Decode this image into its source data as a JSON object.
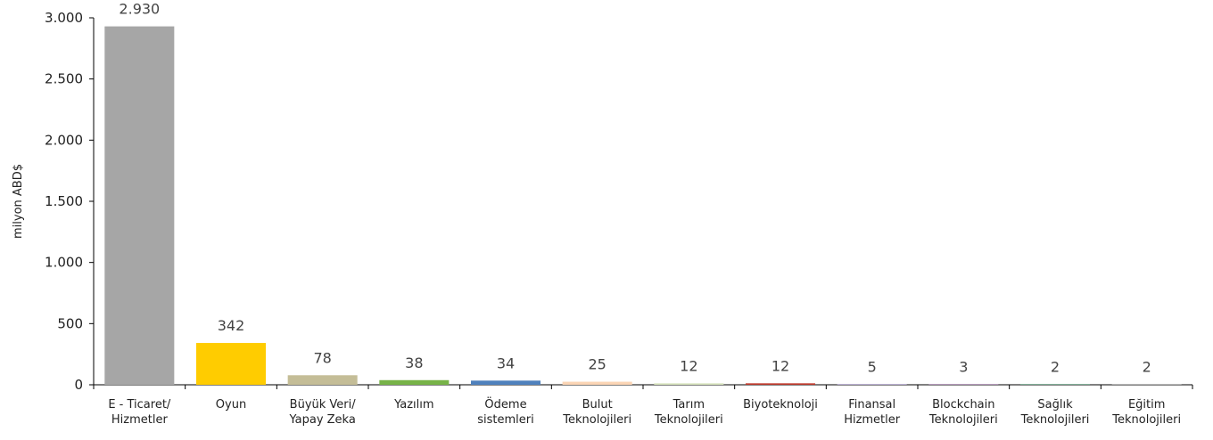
{
  "chart_data": {
    "type": "bar",
    "y_label": "milyon ABD$",
    "categories": [
      [
        "E - Ticaret/",
        "Hizmetler"
      ],
      [
        "Oyun"
      ],
      [
        "Büyük Veri/",
        "Yapay Zeka"
      ],
      [
        "Yazılım"
      ],
      [
        "Ödeme",
        "sistemleri"
      ],
      [
        "Bulut",
        "Teknolojileri"
      ],
      [
        "Tarım",
        "Teknolojileri"
      ],
      [
        "Biyoteknoloji"
      ],
      [
        "Finansal",
        "Hizmetler"
      ],
      [
        "Blockchain",
        "Teknolojileri"
      ],
      [
        "Sağlık",
        "Teknolojileri"
      ],
      [
        "Eğitim",
        "Teknolojileri"
      ]
    ],
    "values": [
      2930,
      342,
      78,
      38,
      34,
      25,
      12,
      12,
      5,
      3,
      2,
      2
    ],
    "value_labels": [
      "2.930",
      "342",
      "78",
      "38",
      "34",
      "25",
      "12",
      "12",
      "5",
      "3",
      "2",
      "2"
    ],
    "colors": [
      "#a6a6a6",
      "#ffcc00",
      "#c4bd97",
      "#77b348",
      "#4f81bd",
      "#fbd5b5",
      "#d7e4bd",
      "#c0392b",
      "#9b8bbd",
      "#7f3f8f",
      "#00a651",
      "#bfbfbf"
    ],
    "ylim": [
      0,
      3000
    ],
    "yticks": [
      0,
      500,
      {
        "value": 1000,
        "label": "1.000"
      },
      {
        "value": 1500,
        "label": "1.500"
      },
      {
        "value": 2000,
        "label": "2.000"
      },
      {
        "value": 2500,
        "label": "2.500"
      },
      {
        "value": 3000,
        "label": "3.000"
      }
    ]
  }
}
